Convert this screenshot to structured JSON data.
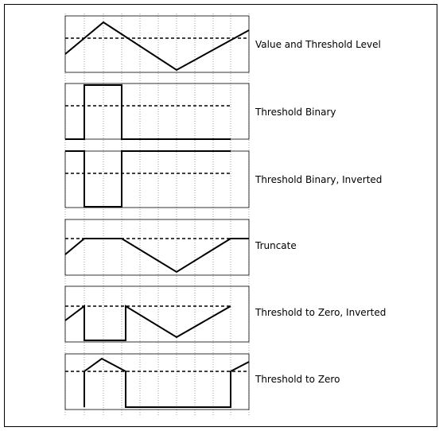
{
  "diagram": {
    "panels": [
      {
        "label": "Value and Threshold Level",
        "waveform": "value"
      },
      {
        "label": "Threshold Binary",
        "waveform": "binary"
      },
      {
        "label": "Threshold Binary, Inverted",
        "waveform": "binary-inverted"
      },
      {
        "label": "Truncate",
        "waveform": "truncate"
      },
      {
        "label": "Threshold to Zero, Inverted",
        "waveform": "to-zero-inverted"
      },
      {
        "label": "Threshold to Zero",
        "waveform": "to-zero"
      }
    ]
  }
}
